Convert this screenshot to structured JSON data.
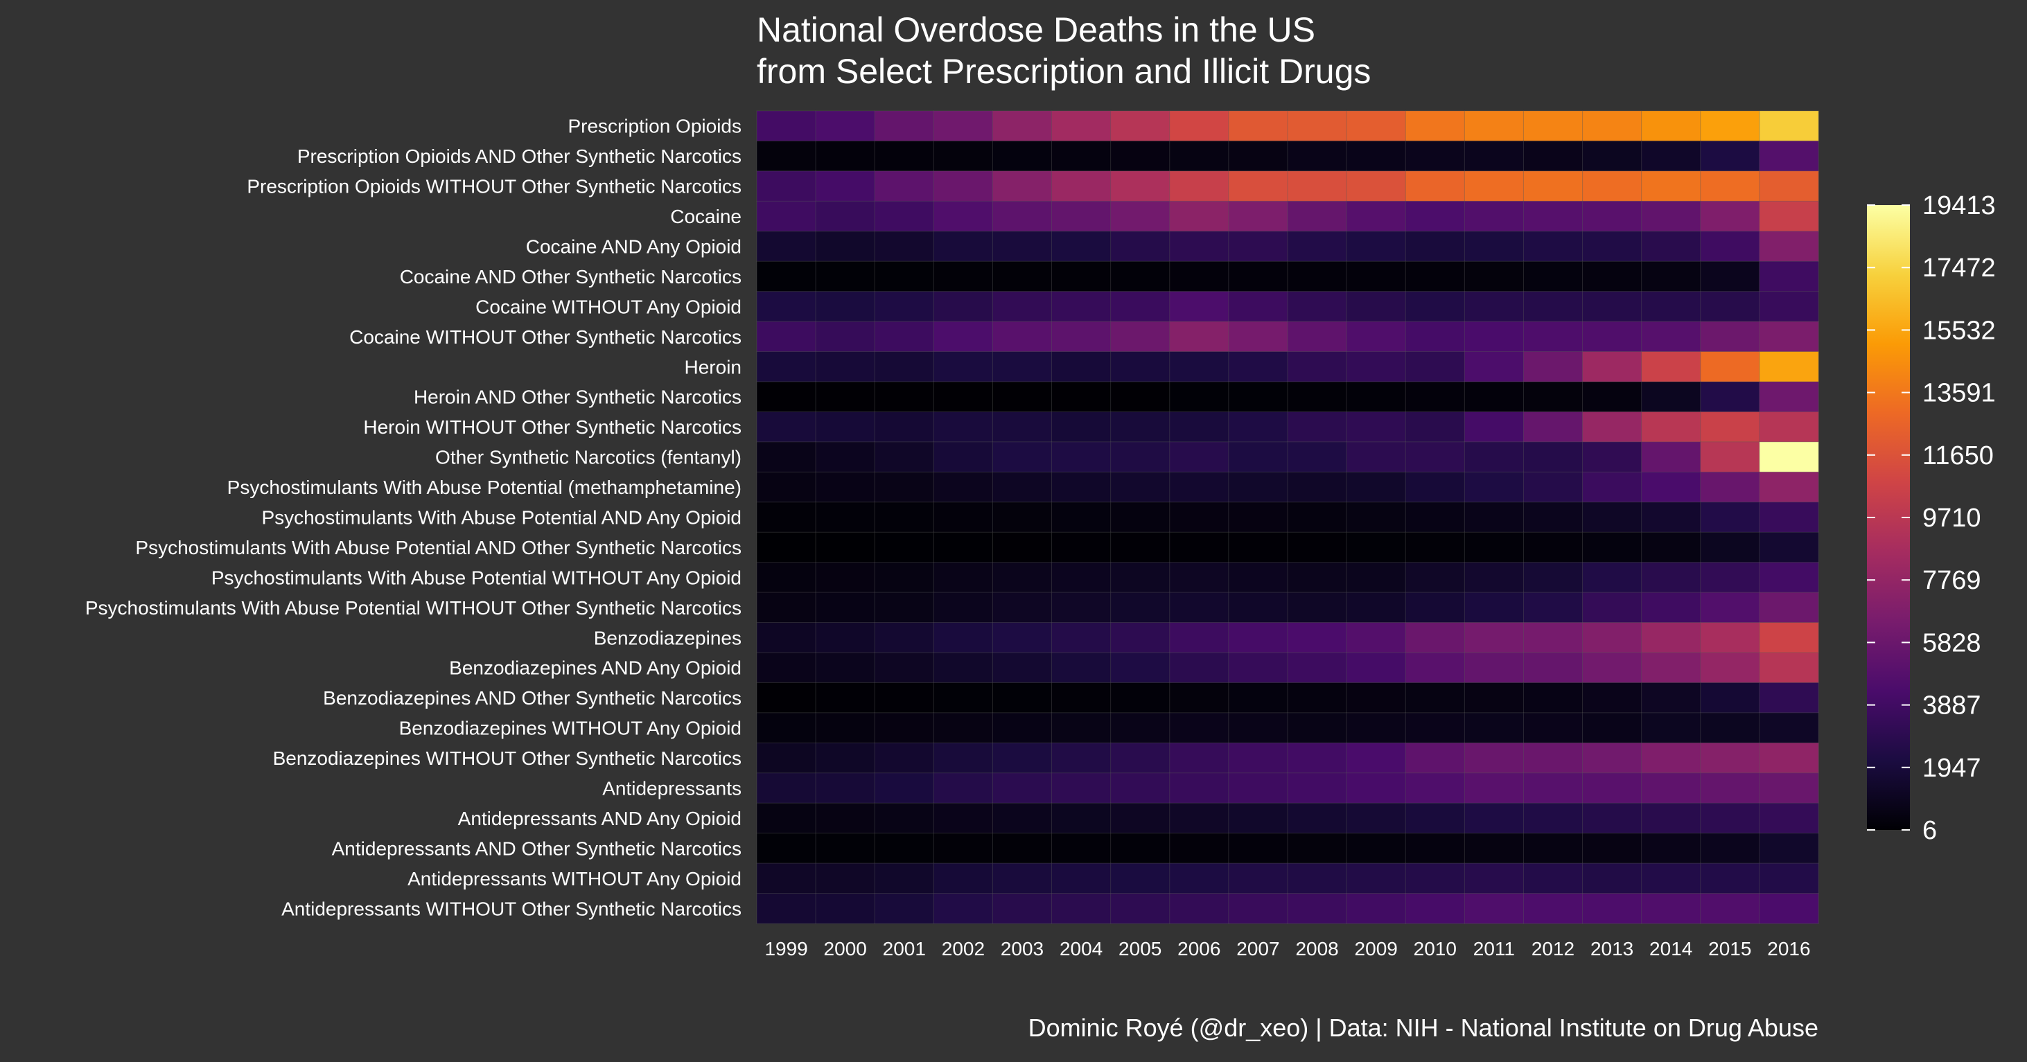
{
  "chart_data": {
    "type": "heatmap",
    "title": "National Overdose Deaths in the US",
    "subtitle": "from Select Prescription and Illicit Drugs",
    "caption": "Dominic Royé (@dr_xeo) | Data: NIH - National Institute on Drug Abuse",
    "xlabel": "",
    "ylabel": "",
    "colormap": "inferno",
    "colors": [
      "#000004",
      "#1b0c41",
      "#4a0c6b",
      "#781c6d",
      "#a52c60",
      "#cf4446",
      "#ed6925",
      "#fb9b06",
      "#f7d13d",
      "#fcffa4"
    ],
    "background": "#333333",
    "legend": {
      "position": "right",
      "min": 6,
      "max": 19413,
      "ticks": [
        19413,
        17472,
        15532,
        13591,
        11650,
        9710,
        7769,
        5828,
        3887,
        1947,
        6
      ]
    },
    "x": [
      "1999",
      "2000",
      "2001",
      "2002",
      "2003",
      "2004",
      "2005",
      "2006",
      "2007",
      "2008",
      "2009",
      "2010",
      "2011",
      "2012",
      "2013",
      "2014",
      "2015",
      "2016"
    ],
    "y": [
      "Prescription Opioids",
      "Prescription Opioids AND Other Synthetic Narcotics",
      "Prescription Opioids WITHOUT Other Synthetic Narcotics",
      "Cocaine",
      "Cocaine AND Any Opioid",
      "Cocaine AND Other Synthetic Narcotics",
      "Cocaine WITHOUT Any Opioid",
      "Cocaine WITHOUT Other Synthetic Narcotics",
      "Heroin",
      "Heroin AND Other Synthetic Narcotics",
      "Heroin WITHOUT Other Synthetic Narcotics",
      "Other Synthetic Narcotics (fentanyl)",
      "Psychostimulants With Abuse Potential (methamphetamine)",
      "Psychostimulants With Abuse Potential AND Any Opioid",
      "Psychostimulants With Abuse Potential AND Other Synthetic Narcotics",
      "Psychostimulants With Abuse Potential WITHOUT Any Opioid",
      "Psychostimulants With Abuse Potential WITHOUT Other Synthetic Narcotics",
      "Benzodiazepines",
      "Benzodiazepines AND Any Opioid",
      "Benzodiazepines AND Other Synthetic Narcotics",
      "Benzodiazepines WITHOUT Any Opioid",
      "Benzodiazepines WITHOUT Other Synthetic Narcotics",
      "Antidepressants",
      "Antidepressants AND Any Opioid",
      "Antidepressants AND Other Synthetic Narcotics",
      "Antidepressants WITHOUT Any Opioid",
      "Antidepressants WITHOUT Other Synthetic Narcotics"
    ],
    "values": [
      [
        4030,
        4400,
        5528,
        6100,
        7500,
        8500,
        9500,
        10900,
        12000,
        12100,
        12300,
        13500,
        14000,
        14100,
        14100,
        14700,
        15300,
        17100
      ],
      [
        300,
        250,
        250,
        300,
        350,
        400,
        450,
        500,
        550,
        700,
        750,
        850,
        900,
        800,
        1000,
        1300,
        2200,
        4800
      ],
      [
        3700,
        4100,
        5200,
        5800,
        7100,
        8100,
        9000,
        10400,
        11400,
        11400,
        11600,
        12700,
        13100,
        13300,
        13100,
        13400,
        13100,
        12300
      ],
      [
        3800,
        3500,
        3800,
        4600,
        5200,
        5500,
        6200,
        7400,
        6700,
        5600,
        4900,
        4400,
        4700,
        4900,
        5000,
        5400,
        6800,
        10400
      ],
      [
        1600,
        1400,
        1500,
        1900,
        2000,
        2100,
        2600,
        3000,
        3000,
        2500,
        2200,
        2000,
        2100,
        2300,
        2400,
        2800,
        3800,
        6900
      ],
      [
        100,
        100,
        100,
        150,
        150,
        150,
        200,
        250,
        250,
        250,
        250,
        250,
        300,
        350,
        400,
        500,
        900,
        3800
      ],
      [
        2200,
        2100,
        2300,
        2700,
        3200,
        3400,
        3600,
        4400,
        3700,
        3100,
        2700,
        2400,
        2600,
        2600,
        2600,
        2600,
        2700,
        3500
      ],
      [
        3700,
        3400,
        3700,
        4400,
        5000,
        5200,
        5900,
        7100,
        6400,
        5300,
        4600,
        4100,
        4300,
        4500,
        4600,
        4900,
        5900,
        6600
      ],
      [
        1960,
        1842,
        1779,
        2089,
        2080,
        1878,
        2009,
        2088,
        2399,
        3041,
        3278,
        3036,
        4397,
        5925,
        8257,
        10574,
        12989,
        15469
      ],
      [
        50,
        50,
        50,
        50,
        50,
        50,
        50,
        100,
        100,
        150,
        200,
        250,
        250,
        300,
        400,
        1000,
        2500,
        6000
      ],
      [
        1900,
        1800,
        1700,
        2000,
        2000,
        1800,
        1900,
        2000,
        2300,
        2900,
        3100,
        2800,
        4100,
        5600,
        7900,
        9600,
        10500,
        9500
      ],
      [
        730,
        957,
        1295,
        1842,
        2201,
        2322,
        2342,
        2707,
        2213,
        2306,
        2946,
        3007,
        2666,
        2628,
        3105,
        5544,
        9580,
        19413
      ],
      [
        547,
        627,
        688,
        938,
        1141,
        1321,
        1460,
        1520,
        1374,
        1275,
        1396,
        1854,
        2266,
        2635,
        3627,
        4298,
        5716,
        7542
      ],
      [
        150,
        180,
        200,
        250,
        300,
        350,
        400,
        450,
        450,
        400,
        500,
        600,
        750,
        900,
        1200,
        1500,
        2500,
        3500
      ],
      [
        20,
        20,
        30,
        40,
        50,
        60,
        70,
        80,
        80,
        80,
        100,
        150,
        200,
        250,
        350,
        500,
        1000,
        1600
      ],
      [
        400,
        450,
        500,
        700,
        850,
        950,
        1050,
        1100,
        950,
        850,
        900,
        1250,
        1500,
        1750,
        2400,
        2800,
        3200,
        4000
      ],
      [
        530,
        600,
        650,
        900,
        1100,
        1250,
        1400,
        1450,
        1300,
        1200,
        1300,
        1700,
        2050,
        2400,
        3300,
        3800,
        4700,
        5900
      ],
      [
        1135,
        1298,
        1594,
        2006,
        2248,
        2570,
        3009,
        3708,
        4120,
        4343,
        4780,
        5813,
        6330,
        6403,
        6942,
        7938,
        8791,
        10684
      ],
      [
        800,
        900,
        1100,
        1400,
        1600,
        1900,
        2300,
        2900,
        3400,
        3700,
        4100,
        5000,
        5500,
        5600,
        6200,
        6900,
        7800,
        9500
      ],
      [
        50,
        60,
        80,
        100,
        120,
        150,
        200,
        300,
        350,
        400,
        450,
        500,
        550,
        600,
        800,
        1100,
        1700,
        3100
      ],
      [
        350,
        400,
        450,
        550,
        600,
        650,
        700,
        800,
        700,
        650,
        700,
        800,
        830,
        800,
        750,
        1000,
        1000,
        1200
      ],
      [
        1080,
        1240,
        1510,
        1900,
        2130,
        2420,
        2810,
        3400,
        3770,
        3940,
        4330,
        5300,
        5780,
        5800,
        6140,
        6800,
        7100,
        7600
      ],
      [
        1749,
        1810,
        2039,
        2597,
        2908,
        3072,
        3219,
        3484,
        3767,
        3966,
        4226,
        4576,
        5015,
        4945,
        5018,
        5322,
        5541,
        5780
      ],
      [
        500,
        550,
        650,
        800,
        900,
        1000,
        1100,
        1250,
        1400,
        1600,
        1750,
        2000,
        2300,
        2400,
        2600,
        2800,
        3000,
        3300
      ],
      [
        100,
        110,
        120,
        150,
        160,
        180,
        200,
        220,
        250,
        300,
        330,
        400,
        480,
        500,
        550,
        700,
        900,
        1400
      ],
      [
        1250,
        1260,
        1390,
        1800,
        2000,
        2070,
        2120,
        2230,
        2370,
        2370,
        2480,
        2580,
        2720,
        2550,
        2420,
        2500,
        2500,
        2500
      ],
      [
        1650,
        1700,
        1920,
        2450,
        2750,
        2890,
        3020,
        3260,
        3520,
        3670,
        3900,
        4180,
        4530,
        4450,
        4470,
        4620,
        4640,
        4380
      ]
    ]
  }
}
